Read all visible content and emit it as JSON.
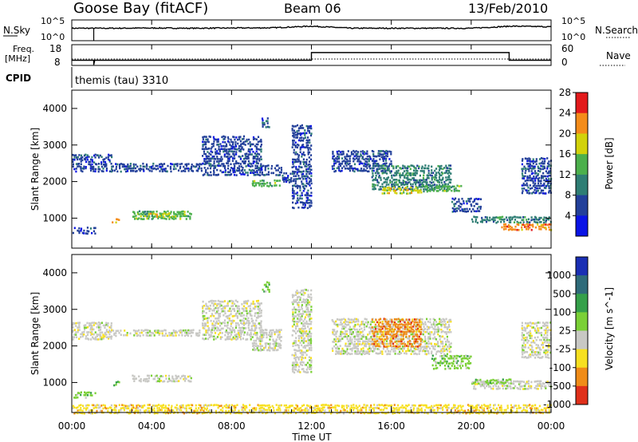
{
  "header": {
    "station": "Goose Bay (fitACF)",
    "beam": "Beam 06",
    "date": "13/Feb/2010"
  },
  "noise_panel": {
    "left_label": "N.Sky",
    "right_label": "N.Search",
    "left_ticks": [
      "10^5",
      "10^0"
    ],
    "right_ticks": [
      "10^5",
      "10^0"
    ]
  },
  "freq_panel": {
    "label_line1": "Freq.",
    "label_line2": "[MHz]",
    "right_label": "Nave",
    "left_ticks": [
      "18",
      "8"
    ],
    "right_ticks": [
      "60",
      "0"
    ]
  },
  "cpid": {
    "label": "CPID",
    "value": "themis (tau) 3310"
  },
  "x_axis": {
    "ticks": [
      "00:00",
      "04:00",
      "08:00",
      "12:00",
      "16:00",
      "20:00",
      "00:00"
    ],
    "label": "Time UT"
  },
  "colors": {
    "scatter_blue": "#1a3fb0",
    "ground_grey": "#c0c0bc",
    "axis": "#000000"
  },
  "chart_data": [
    {
      "type": "line",
      "name": "noise",
      "series": [
        {
          "name": "N.Sky",
          "x_hours": [
            0,
            2,
            4,
            6,
            8,
            10,
            12,
            14,
            16,
            18,
            20,
            22,
            24
          ],
          "values_log10": [
            3.0,
            3.0,
            3.05,
            3.0,
            3.05,
            3.1,
            3.5,
            3.0,
            3.0,
            3.0,
            3.0,
            3.5,
            3.35
          ]
        },
        {
          "name": "N.Search",
          "x_hours": [
            0,
            24
          ],
          "values_log10": [
            0,
            0
          ]
        }
      ],
      "ylim_log10": [
        0,
        5
      ]
    },
    {
      "type": "line",
      "name": "frequency",
      "series": [
        {
          "name": "Freq.",
          "x_hours": [
            0,
            1.1,
            1.1,
            1.15,
            12.0,
            12.0,
            21.9,
            21.9,
            24
          ],
          "values": [
            10.5,
            10.5,
            8.3,
            10.5,
            10.5,
            14.2,
            14.2,
            10.5,
            10.5
          ]
        },
        {
          "name": "Nave",
          "x_hours": [
            0,
            24
          ],
          "values": [
            0,
            0
          ]
        }
      ],
      "ylim_left": [
        8,
        18
      ],
      "ylim_right": [
        0,
        60
      ]
    },
    {
      "type": "heatmap",
      "name": "power",
      "xlabel": "",
      "ylabel": "Slant Range [km]",
      "xlim_hours": [
        0,
        24
      ],
      "ylim_km": [
        180,
        4500
      ],
      "yticks": [
        "1000",
        "2000",
        "3000",
        "4000"
      ],
      "colorbar_label": "Power [dB]",
      "colorbar_ticks": [
        "4",
        "8",
        "12",
        "16",
        "20",
        "24",
        "28"
      ],
      "colorbar_colors": [
        "#0a14e6",
        "#23409a",
        "#2f7e74",
        "#4cb04c",
        "#d2d20a",
        "#f48c1a",
        "#e31a1c"
      ],
      "regions": [
        {
          "t": [
            0.0,
            2.0
          ],
          "r": [
            2300,
            2800
          ],
          "level": 1
        },
        {
          "t": [
            2.0,
            6.5
          ],
          "r": [
            2300,
            2550
          ],
          "level": 1
        },
        {
          "t": [
            6.5,
            10.5
          ],
          "r": [
            2200,
            2500
          ],
          "level": 1
        },
        {
          "t": [
            6.5,
            9.5
          ],
          "r": [
            2500,
            3300
          ],
          "level": 1
        },
        {
          "t": [
            9.0,
            10.5
          ],
          "r": [
            1900,
            2100
          ],
          "level": 3
        },
        {
          "t": [
            3.0,
            6.0
          ],
          "r": [
            1000,
            1250
          ],
          "level": 3
        },
        {
          "t": [
            3.8,
            5.0
          ],
          "r": [
            1050,
            1200
          ],
          "level": 4
        },
        {
          "t": [
            0.0,
            1.2
          ],
          "r": [
            600,
            800
          ],
          "level": 1
        },
        {
          "t": [
            2.0,
            2.4
          ],
          "r": [
            900,
            1050
          ],
          "level": 5
        },
        {
          "t": [
            9.5,
            9.9
          ],
          "r": [
            3500,
            3800
          ],
          "level": 1
        },
        {
          "t": [
            10.5,
            11.0
          ],
          "r": [
            2000,
            2300
          ],
          "level": 1
        },
        {
          "t": [
            11.0,
            12.0
          ],
          "r": [
            1300,
            3600
          ],
          "level": 1
        },
        {
          "t": [
            13.0,
            16.0
          ],
          "r": [
            2300,
            2900
          ],
          "level": 1
        },
        {
          "t": [
            15.0,
            19.0
          ],
          "r": [
            1800,
            2500
          ],
          "level": 2
        },
        {
          "t": [
            15.5,
            17.5
          ],
          "r": [
            1700,
            1900
          ],
          "level": 4
        },
        {
          "t": [
            17.5,
            19.5
          ],
          "r": [
            1750,
            1950
          ],
          "level": 3
        },
        {
          "t": [
            19.0,
            20.5
          ],
          "r": [
            1200,
            1600
          ],
          "level": 1
        },
        {
          "t": [
            20.0,
            24.0
          ],
          "r": [
            900,
            1100
          ],
          "level": 2
        },
        {
          "t": [
            21.5,
            24.0
          ],
          "r": [
            700,
            900
          ],
          "level": 5
        },
        {
          "t": [
            22.5,
            24.0
          ],
          "r": [
            1700,
            2700
          ],
          "level": 1
        }
      ]
    },
    {
      "type": "heatmap",
      "name": "velocity",
      "xlabel": "Time UT",
      "ylabel": "Slant Range [km]",
      "xlim_hours": [
        0,
        24
      ],
      "ylim_km": [
        180,
        4500
      ],
      "yticks": [
        "1000",
        "2000",
        "3000",
        "4000"
      ],
      "colorbar_label": "Velocity [m s^-1]",
      "colorbar_ticks": [
        "1000",
        "500",
        "100",
        "25",
        "-25",
        "-100",
        "-500",
        "-1000"
      ],
      "colorbar_colors": [
        "#1a2fb4",
        "#2f6b7a",
        "#35a04a",
        "#7ad036",
        "#c8c8c4",
        "#f7e020",
        "#f08c18",
        "#e0301a"
      ],
      "regions": [
        {
          "t": [
            0.0,
            2.0
          ],
          "r": [
            2200,
            2700
          ],
          "level": 4
        },
        {
          "t": [
            2.0,
            6.5
          ],
          "r": [
            2300,
            2500
          ],
          "level": 4
        },
        {
          "t": [
            6.5,
            10.5
          ],
          "r": [
            2200,
            2500
          ],
          "level": 4
        },
        {
          "t": [
            6.5,
            9.5
          ],
          "r": [
            2500,
            3300
          ],
          "level": 4
        },
        {
          "t": [
            9.0,
            10.5
          ],
          "r": [
            1900,
            2200
          ],
          "level": 4
        },
        {
          "t": [
            3.0,
            6.0
          ],
          "r": [
            1050,
            1250
          ],
          "level": 4
        },
        {
          "t": [
            0.0,
            1.2
          ],
          "r": [
            600,
            800
          ],
          "level": 3
        },
        {
          "t": [
            2.0,
            2.4
          ],
          "r": [
            950,
            1100
          ],
          "level": 3
        },
        {
          "t": [
            9.5,
            9.9
          ],
          "r": [
            3500,
            3800
          ],
          "level": 3
        },
        {
          "t": [
            11.0,
            12.0
          ],
          "r": [
            1300,
            3600
          ],
          "level": 4
        },
        {
          "t": [
            13.0,
            19.0
          ],
          "r": [
            1800,
            2800
          ],
          "level": 4
        },
        {
          "t": [
            15.0,
            17.5
          ],
          "r": [
            2000,
            2800
          ],
          "level": 6
        },
        {
          "t": [
            18.0,
            20.0
          ],
          "r": [
            1400,
            1800
          ],
          "level": 3
        },
        {
          "t": [
            20.0,
            24.0
          ],
          "r": [
            850,
            1100
          ],
          "level": 4
        },
        {
          "t": [
            20.0,
            22.0
          ],
          "r": [
            1000,
            1150
          ],
          "level": 3
        },
        {
          "t": [
            22.5,
            24.0
          ],
          "r": [
            1700,
            2700
          ],
          "level": 4
        },
        {
          "t": [
            0.0,
            24.0
          ],
          "r": [
            180,
            450
          ],
          "level": 5
        }
      ]
    }
  ]
}
